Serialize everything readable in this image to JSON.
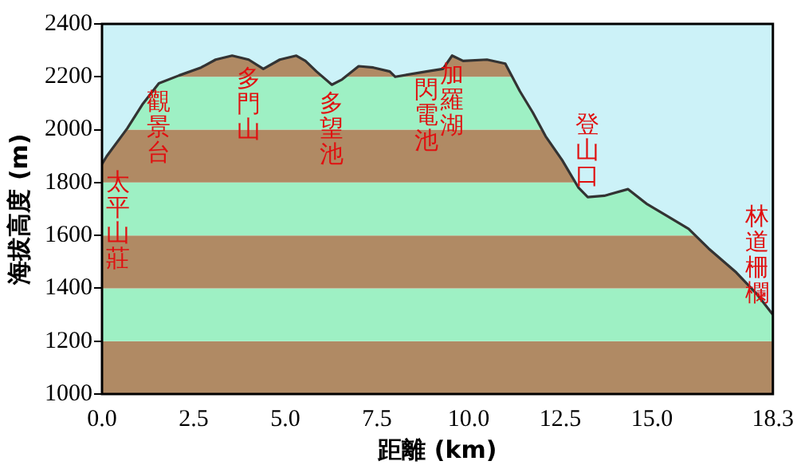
{
  "chart_data": {
    "type": "line",
    "xlabel": "距離 (km)",
    "ylabel": "海拔高度 (m)",
    "x": [
      0,
      0.13,
      0.69,
      1.1,
      1.55,
      2.1,
      2.7,
      3.1,
      3.55,
      4.0,
      4.4,
      4.85,
      5.3,
      5.55,
      5.85,
      6.27,
      6.55,
      7.0,
      7.4,
      7.85,
      8.0,
      8.85,
      9.3,
      9.55,
      9.85,
      10.5,
      11.0,
      11.4,
      11.75,
      12.1,
      12.55,
      13.0,
      13.25,
      13.7,
      14.35,
      14.85,
      15.4,
      16.0,
      16.55,
      17.3,
      17.85,
      18.3
    ],
    "series": [
      {
        "color": "#333333",
        "values": [
          1870,
          1900,
          2005,
          2095,
          2175,
          2205,
          2235,
          2265,
          2280,
          2265,
          2230,
          2265,
          2280,
          2260,
          2220,
          2170,
          2190,
          2240,
          2235,
          2220,
          2200,
          2220,
          2230,
          2280,
          2260,
          2265,
          2250,
          2145,
          2065,
          1975,
          1885,
          1780,
          1745,
          1750,
          1775,
          1720,
          1675,
          1625,
          1550,
          1460,
          1380,
          1300
        ]
      }
    ],
    "xlim": [
      0,
      18.3
    ],
    "xticks": [
      {
        "value": 0,
        "label": "0.0"
      },
      2.5,
      {
        "value": 5,
        "label": "5.0"
      },
      7.5,
      {
        "value": 10,
        "label": "10.0"
      },
      12.5,
      {
        "value": 15,
        "label": "15.0"
      },
      18.3
    ],
    "ylim": [
      1000,
      2400
    ],
    "yticks": [
      1000,
      1200,
      1400,
      1600,
      1800,
      2000,
      2200,
      2400
    ],
    "bands": [
      {
        "axis": "y",
        "from": 1000,
        "to": 1200,
        "color": "#b08a64"
      },
      {
        "axis": "y",
        "from": 1200,
        "to": 1400,
        "color": "#9ef0c4"
      },
      {
        "axis": "y",
        "from": 1400,
        "to": 1600,
        "color": "#b08a64"
      },
      {
        "axis": "y",
        "from": 1600,
        "to": 1800,
        "color": "#9ef0c4"
      },
      {
        "axis": "y",
        "from": 1800,
        "to": 2000,
        "color": "#b08a64"
      },
      {
        "axis": "y",
        "from": 2000,
        "to": 2200,
        "color": "#9ef0c4"
      },
      {
        "axis": "y",
        "from": 2200,
        "to": 2400,
        "color": "#b08a64"
      }
    ],
    "annotations": [
      {
        "text": "太平山莊",
        "x": 0,
        "y": 1870
      },
      {
        "text": "觀景台",
        "x": 1.55,
        "y": 2175
      },
      {
        "text": "多門山",
        "x": 4.0,
        "y": 2265
      },
      {
        "text": "多望池",
        "x": 6.27,
        "y": 2170
      },
      {
        "text": "閃電池",
        "x": 8.85,
        "y": 2220
      },
      {
        "text": "加羅湖",
        "x": 9.55,
        "y": 2280
      },
      {
        "text": "登山口",
        "x": 13.25,
        "y": 1745
      },
      {
        "text": "林道柵欄",
        "x": 18.3,
        "y": 1300
      }
    ],
    "legend": false,
    "grid": false,
    "marker": "none",
    "line_style": "solid"
  }
}
